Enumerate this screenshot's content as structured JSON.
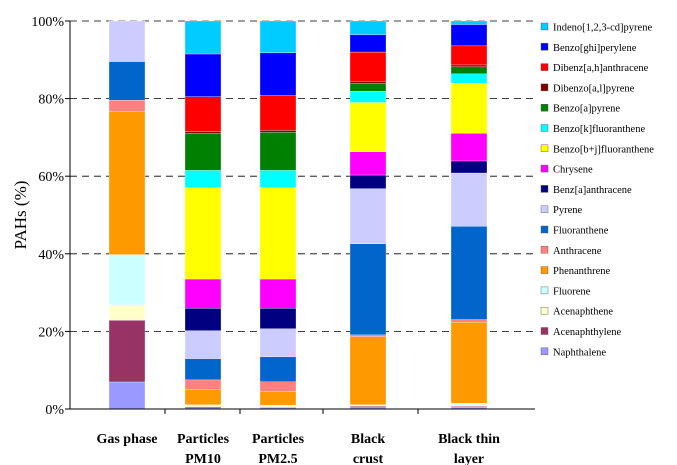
{
  "chart_data": {
    "type": "bar",
    "stacked": true,
    "normalized_percent": true,
    "title": "",
    "xlabel": "",
    "ylabel": "PAHs (%)",
    "ylim": [
      0,
      100
    ],
    "yticks": [
      "0%",
      "20%",
      "40%",
      "60%",
      "80%",
      "100%"
    ],
    "grid": "horizontal-dashed",
    "legend_position": "right",
    "categories": [
      [
        "Gas phase"
      ],
      [
        "Particles",
        "PM10"
      ],
      [
        "Particles",
        "PM2.5"
      ],
      [
        "Black",
        "crust"
      ],
      [
        "Black thin",
        "layer"
      ]
    ],
    "series": [
      {
        "name": "Naphthalene",
        "color": "#9999ff",
        "values": [
          7,
          0.3,
          0.3,
          0.6,
          0.5
        ]
      },
      {
        "name": "Acenaphthylene",
        "color": "#993366",
        "values": [
          16,
          0.3,
          0.2,
          0.2,
          0.2
        ]
      },
      {
        "name": "Acenaphthene",
        "color": "#ffffcc",
        "values": [
          4,
          0.2,
          0.2,
          0.1,
          0.2
        ]
      },
      {
        "name": "Fluorene",
        "color": "#ccffff",
        "values": [
          13,
          0.3,
          0.3,
          0.2,
          0.6
        ]
      },
      {
        "name": "Phenanthrene",
        "color": "#ff9900",
        "values": [
          37,
          3.9,
          3.5,
          17.5,
          20.8
        ]
      },
      {
        "name": "Anthracene",
        "color": "#ff8080",
        "values": [
          3,
          2.5,
          2.5,
          0.5,
          0.7
        ]
      },
      {
        "name": "Fluoranthene",
        "color": "#0066cc",
        "values": [
          10,
          5.5,
          6.5,
          23.5,
          24
        ]
      },
      {
        "name": "Pyrene",
        "color": "#ccccff",
        "values": [
          10.5,
          7.2,
          7.2,
          14.2,
          13.7
        ]
      },
      {
        "name": "Benz[a]anthracene",
        "color": "#000080",
        "values": [
          0,
          5.8,
          5.3,
          3.5,
          3.1
        ]
      },
      {
        "name": "Chrysene",
        "color": "#ff00ff",
        "values": [
          0,
          7.5,
          7.5,
          6,
          7.1
        ]
      },
      {
        "name": "Benzo[b+j]fluoranthene",
        "color": "#ffff00",
        "values": [
          0,
          23.5,
          23.5,
          12.7,
          12.9
        ]
      },
      {
        "name": "Benzo[k]fluoranthene",
        "color": "#00ffff",
        "values": [
          0,
          4.5,
          4.5,
          2.9,
          2.4
        ]
      },
      {
        "name": "Benzo[a]pyrene",
        "color": "#008000",
        "values": [
          0,
          9.5,
          9.8,
          2,
          1.8
        ]
      },
      {
        "name": "Dibenzo[a,l]pyrene",
        "color": "#800000",
        "values": [
          0,
          0.5,
          0.5,
          0.6,
          0.5
        ]
      },
      {
        "name": "Dibenz[a,h]anthracene",
        "color": "#ff0000",
        "values": [
          0,
          9,
          9,
          7.5,
          4.9
        ]
      },
      {
        "name": "Benzo[ghi]perylene",
        "color": "#0000ff",
        "values": [
          0,
          11,
          11,
          4.5,
          5.5
        ]
      },
      {
        "name": "Indeno[1,2,3-cd]pyrene",
        "color": "#00ccff",
        "values": [
          0,
          8.5,
          8.2,
          3.5,
          0.9
        ]
      }
    ]
  }
}
